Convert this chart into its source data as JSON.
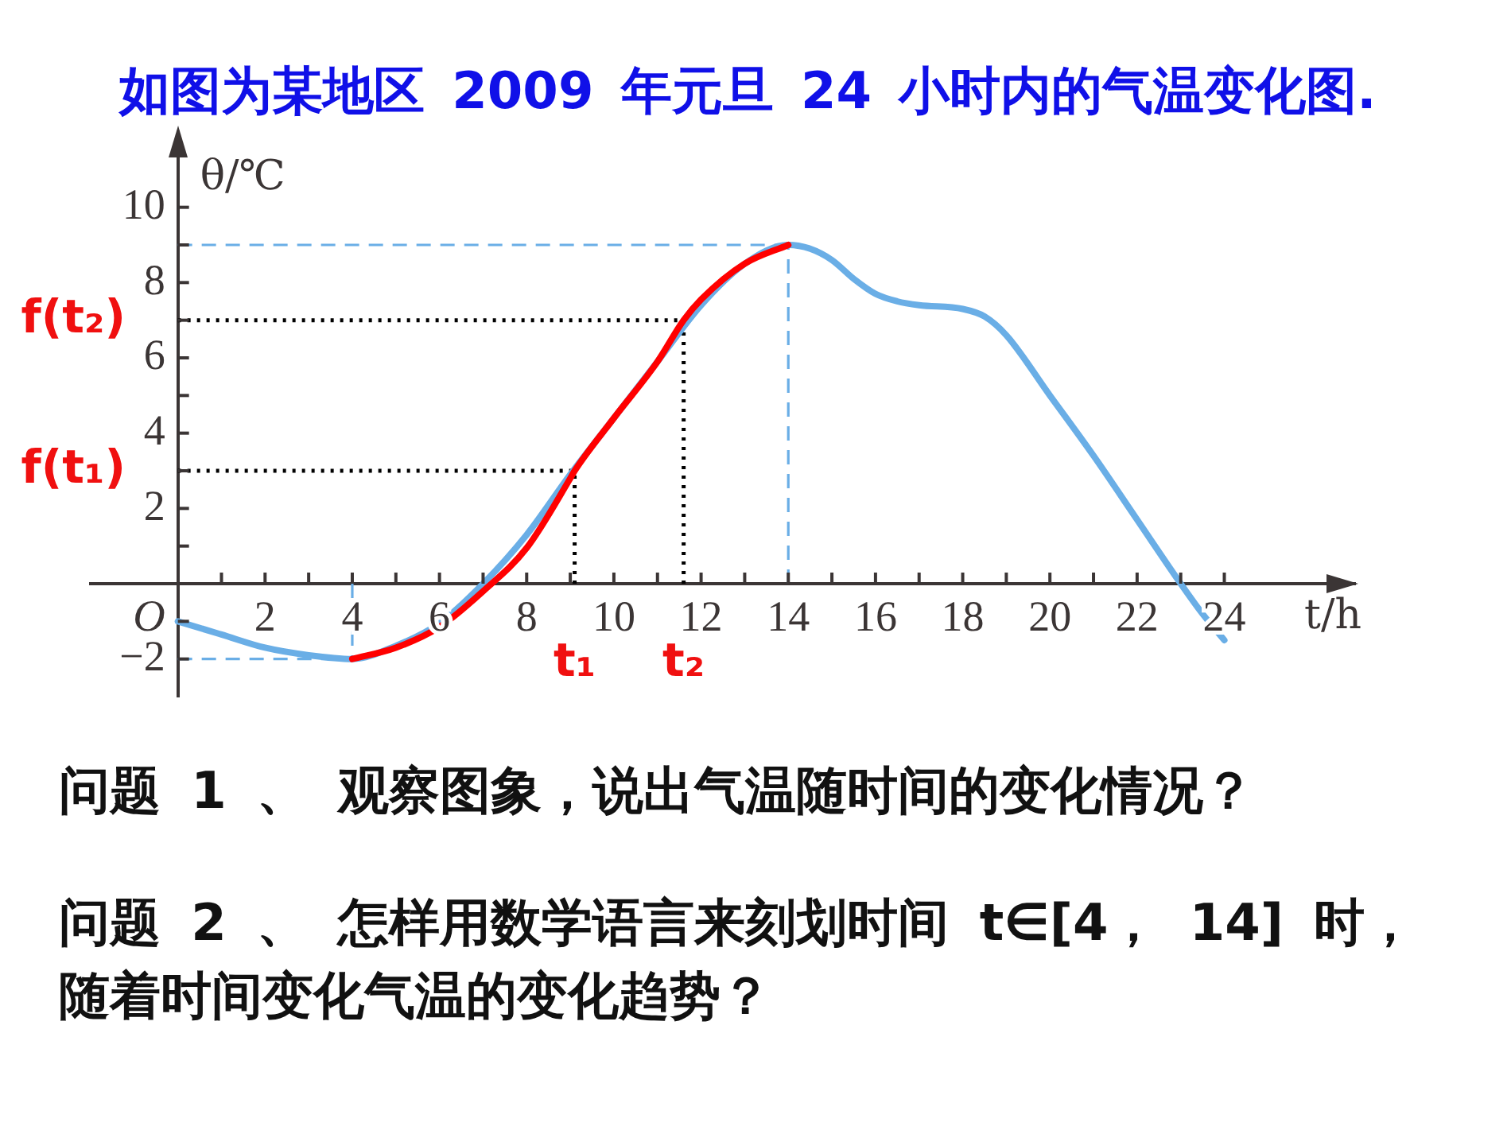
{
  "chart_data": {
    "type": "line",
    "title": "如图为某地区 2009 年元旦 24 小时内的气温变化图.",
    "xlabel": "t/h",
    "ylabel": "θ/℃",
    "series": [
      {
        "color": "#6aaee6",
        "x": [
          0,
          1,
          2,
          3,
          4,
          5,
          6,
          7,
          8,
          9,
          10,
          11,
          12,
          13,
          14,
          14.5,
          15,
          15.5,
          16,
          16.5,
          17,
          18,
          18.5,
          19,
          20,
          21,
          22,
          23,
          23.5,
          24
        ],
        "values": [
          -1,
          -1.35,
          -1.7,
          -1.9,
          -2,
          -1.65,
          -1.05,
          0,
          1.3,
          2.9,
          4.4,
          5.9,
          7.4,
          8.5,
          9,
          8.9,
          8.6,
          8.1,
          7.7,
          7.5,
          7.4,
          7.3,
          7.1,
          6.6,
          5,
          3.4,
          1.7,
          0,
          -0.8,
          -1.5
        ]
      },
      {
        "color": "#ff0000",
        "x": [
          4,
          5,
          6,
          7,
          8,
          9,
          9.1,
          10,
          11,
          11.6,
          12,
          13,
          14
        ],
        "values": [
          -2,
          -1.7,
          -1.15,
          -0.2,
          0.95,
          2.8,
          3,
          4.4,
          5.9,
          7,
          7.55,
          8.5,
          9
        ]
      }
    ],
    "xlim": [
      -2,
      27
    ],
    "ylim": [
      -3,
      12
    ],
    "xticks": [
      {
        "value": 1,
        "label": null
      },
      2,
      {
        "value": 3,
        "label": null
      },
      4,
      {
        "value": 5,
        "label": null
      },
      6,
      {
        "value": 7,
        "label": null
      },
      8,
      {
        "value": 9,
        "label": null
      },
      10,
      {
        "value": 11,
        "label": null
      },
      12,
      {
        "value": 13,
        "label": null
      },
      14,
      {
        "value": 15,
        "label": null
      },
      16,
      {
        "value": 17,
        "label": null
      },
      18,
      {
        "value": 19,
        "label": null
      },
      20,
      {
        "value": 21,
        "label": null
      },
      22,
      {
        "value": 23,
        "label": null
      },
      24
    ],
    "yticks": [
      {
        "value": -2,
        "label": "−2"
      },
      {
        "value": -1,
        "label": null
      },
      {
        "value": 1,
        "label": null
      },
      2,
      {
        "value": 3,
        "label": null
      },
      4,
      {
        "value": 5,
        "label": null
      },
      6,
      {
        "value": 7,
        "label": null
      },
      8,
      {
        "value": 9,
        "label": null
      },
      10
    ],
    "marker": "none",
    "ref_lines": [
      {
        "axis": "y",
        "value": 9,
        "color": "#6aaee6",
        "line_style": "dashed"
      },
      {
        "axis": "x",
        "value": 14,
        "color": "#6aaee6",
        "line_style": "dashed"
      },
      {
        "axis": "y",
        "value": -2,
        "color": "#6aaee6",
        "line_style": "dashed"
      },
      {
        "axis": "x",
        "value": 4,
        "color": "#6aaee6",
        "line_style": "dashed"
      },
      {
        "axis": "y",
        "value": 7,
        "label": "f(t₂)",
        "color": "#000000",
        "line_style": "dotted"
      },
      {
        "axis": "x",
        "value": 11.6,
        "label": "t₂",
        "color": "#000000",
        "line_style": "dotted"
      },
      {
        "axis": "y",
        "value": 3,
        "label": "f(t₁)",
        "color": "#000000",
        "line_style": "dotted"
      },
      {
        "axis": "x",
        "value": 9.1,
        "label": "t₁",
        "color": "#000000",
        "line_style": "dotted"
      }
    ],
    "annotations": [
      "O",
      "问题 1 、 观察图象，说出气温随时间的变化情况？",
      "问题 2 、 怎样用数学语言来刻划时间 t∈[4， 14] 时，随着时间变化气温的变化趋势？"
    ]
  }
}
